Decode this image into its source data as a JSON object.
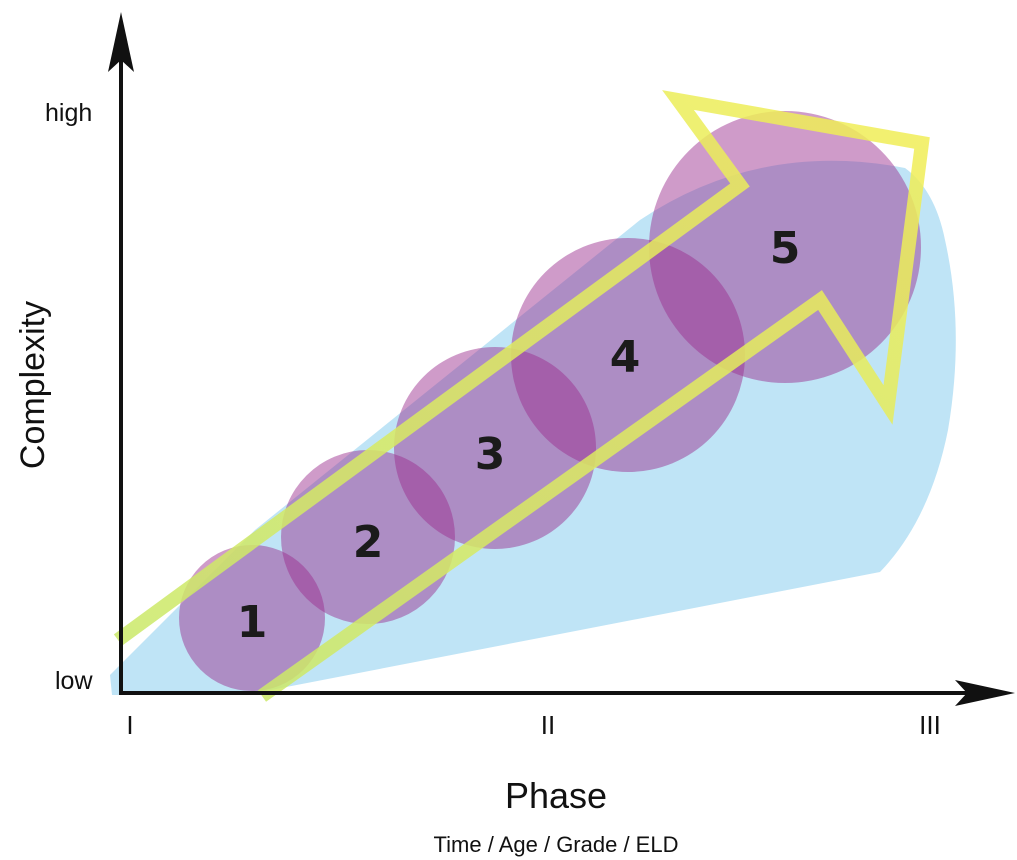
{
  "y_axis": {
    "title": "Complexity",
    "high_label": "high",
    "low_label": "low"
  },
  "x_axis": {
    "title": "Phase",
    "subtitle": "Time / Age / Grade / ELD",
    "ticks": [
      "I",
      "II",
      "III"
    ]
  },
  "stages": [
    "1",
    "2",
    "3",
    "4",
    "5"
  ],
  "colors": {
    "cone_fill": "#bfe4f6",
    "circle_fill": "#9b2f8f",
    "arrow_outline_green": "#c8e86a",
    "arrow_outline_yellow": "#f2ee56",
    "arrow_overlap": "#c97c4a",
    "axis": "#111111"
  }
}
